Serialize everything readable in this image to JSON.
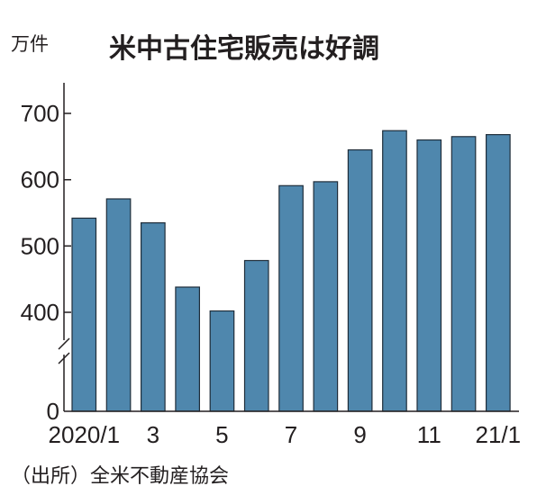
{
  "chart_data": {
    "type": "bar",
    "title": "米中古住宅販売は好調",
    "ylabel": "万件",
    "source": "（出所）全米不動産協会",
    "categories": [
      "2020/1",
      "2",
      "3",
      "4",
      "5",
      "6",
      "7",
      "8",
      "9",
      "10",
      "11",
      "12",
      "21/1"
    ],
    "x_tick_labels": [
      "2020/1",
      "",
      "3",
      "",
      "5",
      "",
      "7",
      "",
      "9",
      "",
      "11",
      "",
      "21/1"
    ],
    "values": [
      542,
      571,
      535,
      438,
      402,
      478,
      591,
      597,
      645,
      674,
      660,
      665,
      668
    ],
    "ylim": [
      0,
      760
    ],
    "yticks": [
      0,
      400,
      500,
      600,
      700
    ],
    "axis_break": true,
    "grid": false,
    "bar_color": "#4f87ad"
  }
}
